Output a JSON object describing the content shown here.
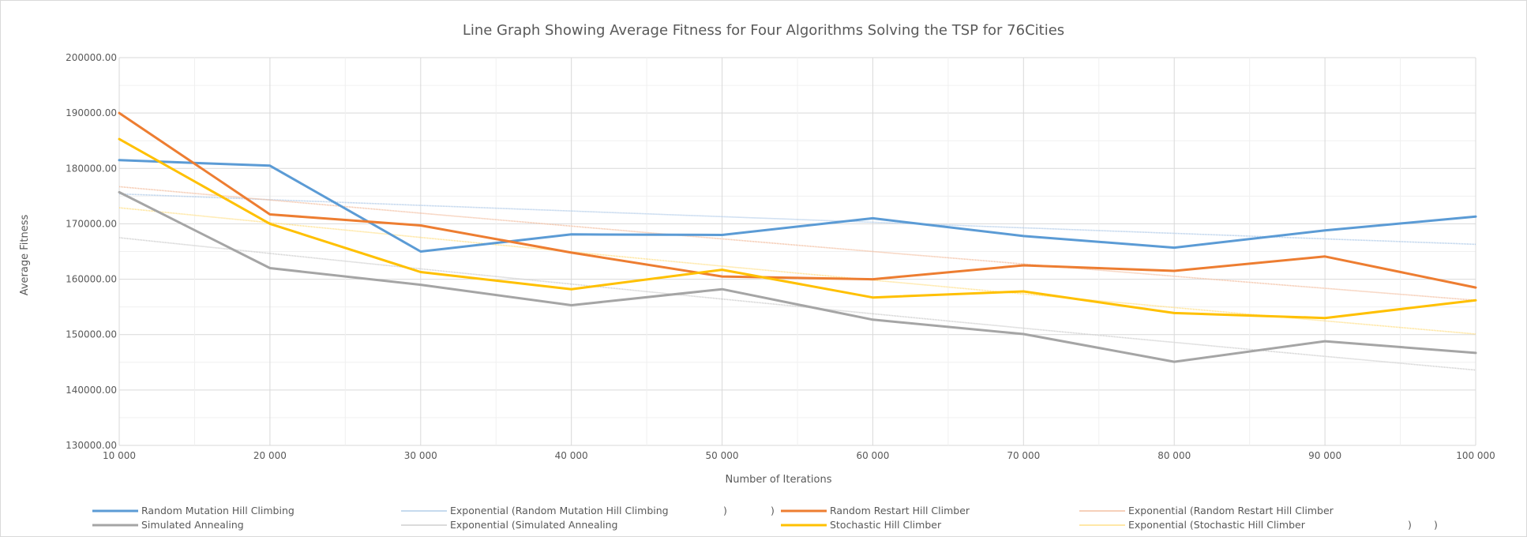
{
  "chart_data": {
    "type": "line",
    "title": "Line Graph Showing Average Fitness for Four Algorithms Solving the TSP for 76Cities",
    "xlabel": "Number of Iterations",
    "ylabel": "Average Fitness",
    "categories": [
      "10 000",
      "20 000",
      "30 000",
      "40 000",
      "50 000",
      "60 000",
      "70 000",
      "80 000",
      "90 000",
      "100 000"
    ],
    "x": [
      10000,
      20000,
      30000,
      40000,
      50000,
      60000,
      70000,
      80000,
      90000,
      100000
    ],
    "ylim": [
      130000,
      200000
    ],
    "y_ticks": [
      "130000.00",
      "140000.00",
      "150000.00",
      "160000.00",
      "170000.00",
      "180000.00",
      "190000.00",
      "200000.00"
    ],
    "grid": true,
    "legend_position": "bottom",
    "series": [
      {
        "name": "Random Mutation Hill Climbing",
        "color": "#5b9bd5",
        "values": [
          181500,
          180500,
          165000,
          168100,
          168000,
          171000,
          167800,
          165700,
          168800,
          171300
        ]
      },
      {
        "name": "Random Restart Hill Climber",
        "color": "#ed7d31",
        "values": [
          190000,
          171700,
          169700,
          164800,
          160500,
          160000,
          162500,
          161500,
          164100,
          158500
        ]
      },
      {
        "name": "Simulated Annealing",
        "color": "#a5a5a5",
        "values": [
          175700,
          162000,
          159000,
          155300,
          158200,
          152700,
          150100,
          145100,
          148800,
          146700
        ]
      },
      {
        "name": "Stochastic Hill Climber",
        "color": "#ffc000",
        "values": [
          185300,
          170000,
          161300,
          158200,
          161700,
          156700,
          157800,
          153900,
          153000,
          156200
        ]
      }
    ],
    "trendlines": [
      {
        "name": "Exponential (Random Mutation Hill Climbing",
        "suffix": ")",
        "color": "#b4cde9",
        "start": 175400,
        "end": 166300
      },
      {
        "name": "Exponential (Random Restart Hill Climber",
        "suffix": ")",
        "color": "#f3c0a3",
        "start": 176700,
        "end": 156200
      },
      {
        "name": "Exponential (Simulated Annealing",
        "suffix": ")",
        "color": "#cfcfcf",
        "start": 167500,
        "end": 143600
      },
      {
        "name": "Exponential (Stochastic Hill Climber",
        "suffix": ")",
        "color": "#ffe08a",
        "start": 172900,
        "end": 150100
      }
    ]
  }
}
